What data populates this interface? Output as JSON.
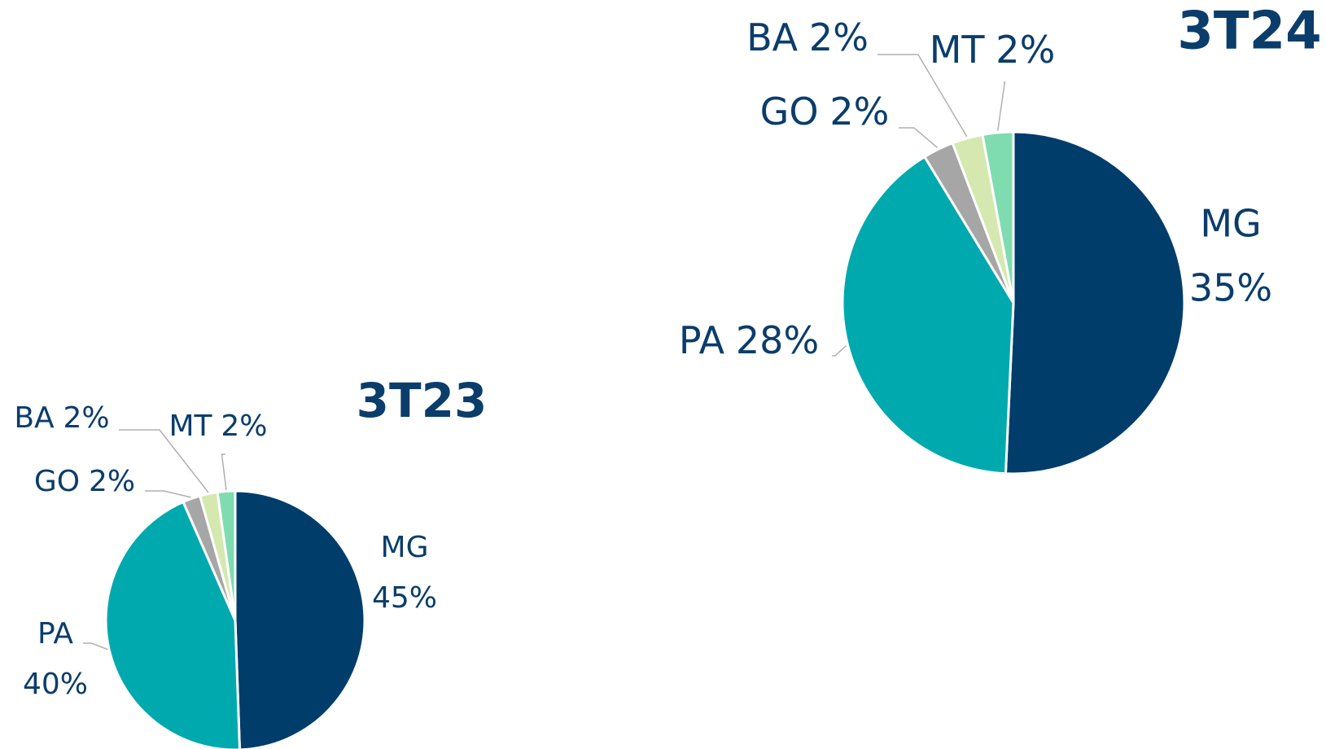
{
  "chart_data": [
    {
      "type": "pie",
      "title": "3T23",
      "categories": [
        "MG",
        "PA",
        "GO",
        "BA",
        "MT"
      ],
      "values": [
        45,
        40,
        2,
        2,
        2
      ],
      "value_labels": [
        "45%",
        "40%",
        "2%",
        "2%",
        "2%"
      ],
      "colors": [
        "#003d6b",
        "#00a9ad",
        "#a6a6a6",
        "#d4e8b0",
        "#7fdcb0"
      ]
    },
    {
      "type": "pie",
      "title": "3T24",
      "categories": [
        "MG",
        "PA",
        "GO",
        "BA",
        "MT"
      ],
      "values": [
        35,
        28,
        2,
        2,
        2
      ],
      "value_labels": [
        "35%",
        "28%",
        "2%",
        "2%",
        "2%"
      ],
      "colors": [
        "#003d6b",
        "#00a9ad",
        "#a6a6a6",
        "#d4e8b0",
        "#7fdcb0"
      ]
    }
  ]
}
